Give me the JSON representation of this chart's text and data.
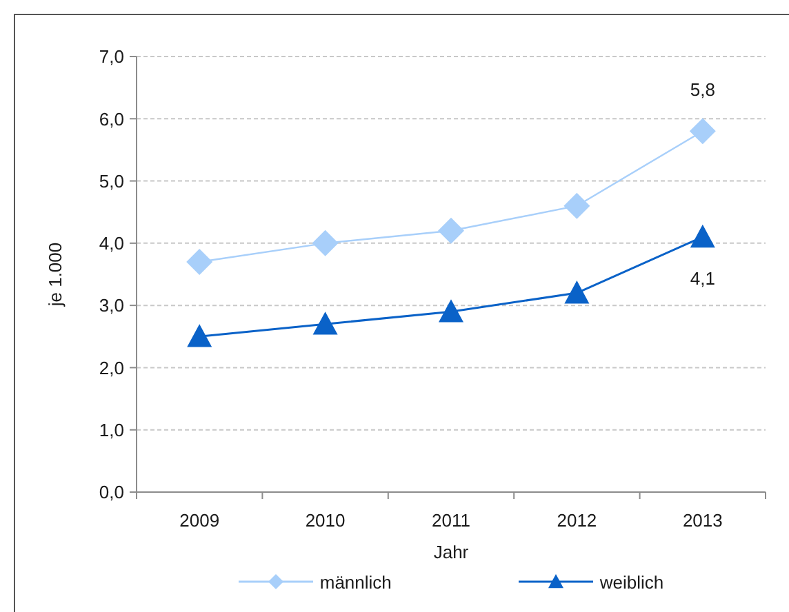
{
  "chart_data": {
    "type": "line",
    "xlabel": "Jahr",
    "ylabel": "je 1.000",
    "categories": [
      "2009",
      "2010",
      "2011",
      "2012",
      "2013"
    ],
    "series": [
      {
        "name": "männlich",
        "color": "#a8cffa",
        "marker": "diamond",
        "values": [
          3.7,
          4.0,
          4.2,
          4.6,
          5.8
        ],
        "value_labels": [
          null,
          null,
          null,
          null,
          "5,8"
        ]
      },
      {
        "name": "weiblich",
        "color": "#0a62c8",
        "marker": "triangle",
        "values": [
          2.5,
          2.7,
          2.9,
          3.2,
          4.1
        ],
        "value_labels": [
          null,
          null,
          null,
          null,
          "4,1"
        ]
      }
    ],
    "ylim": [
      0,
      7
    ],
    "yticks": [
      {
        "value": 0,
        "label": "0,0"
      },
      {
        "value": 1,
        "label": "1,0"
      },
      {
        "value": 2,
        "label": "2,0"
      },
      {
        "value": 3,
        "label": "3,0"
      },
      {
        "value": 4,
        "label": "4,0"
      },
      {
        "value": 5,
        "label": "5,0"
      },
      {
        "value": 6,
        "label": "6,0"
      },
      {
        "value": 7,
        "label": "7,0"
      }
    ],
    "grid": "y",
    "legend": "bottom",
    "line_style": "solid"
  }
}
